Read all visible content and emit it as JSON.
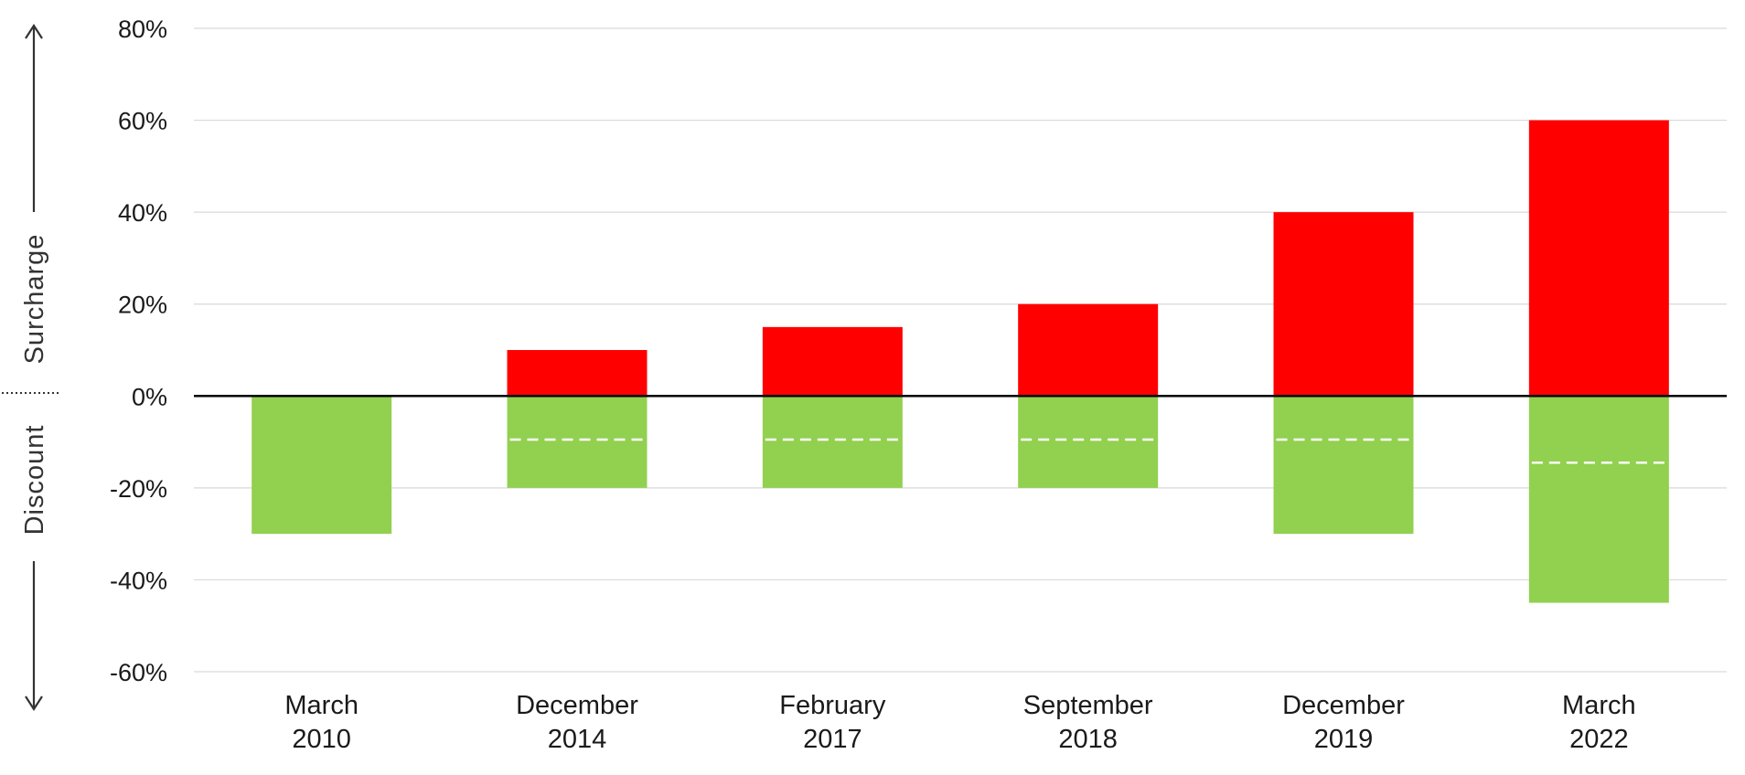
{
  "chart_data": {
    "type": "bar",
    "categories": [
      [
        "March",
        "2010"
      ],
      [
        "December",
        "2014"
      ],
      [
        "February",
        "2017"
      ],
      [
        "September",
        "2018"
      ],
      [
        "December",
        "2019"
      ],
      [
        "March",
        "2022"
      ]
    ],
    "series": [
      {
        "values": [
          0,
          10,
          15,
          20,
          40,
          60
        ],
        "color": "#ff0000"
      },
      {
        "values": [
          -30,
          -20,
          -20,
          -20,
          -30,
          -45
        ],
        "color": "#92d050"
      }
    ],
    "dashed_markers": [
      null,
      -9.5,
      -9.5,
      -9.5,
      -9.5,
      -14.5
    ],
    "dashed_marker_color": "#ffffff",
    "ylim": [
      -60,
      80
    ],
    "yticks": [
      80,
      60,
      40,
      20,
      0,
      -20,
      -40,
      -60
    ],
    "ytick_labels": [
      "80%",
      "60%",
      "40%",
      "20%",
      "0%",
      "-20%",
      "-40%",
      "-60%"
    ],
    "grid": true,
    "side_labels": {
      "upper": "Surcharge",
      "lower": "Discount"
    },
    "colors": {
      "grid": "#d9d9d9",
      "zero_line": "#000000",
      "text": "#1a1a1a"
    }
  }
}
